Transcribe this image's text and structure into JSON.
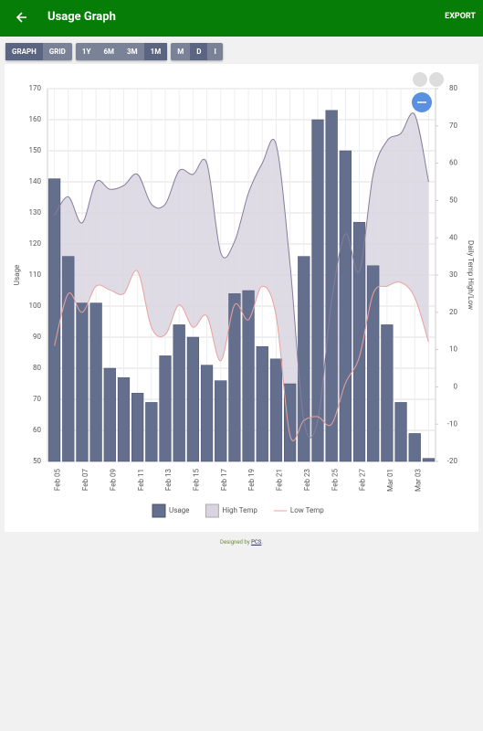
{
  "header": {
    "title": "Usage Graph",
    "action": "EXPORT"
  },
  "toolbar": {
    "groups": [
      {
        "buttons": [
          "GRAPH",
          "GRID"
        ],
        "active": 0
      },
      {
        "buttons": [
          "1Y",
          "6M",
          "3M",
          "1M"
        ],
        "active": 3
      },
      {
        "buttons": [
          "M",
          "D",
          "I"
        ],
        "active": 1
      }
    ]
  },
  "chart_data": {
    "type": "combo",
    "ylabel": "Usage",
    "y2label": "Daily Temp High/Low",
    "categories": [
      "Feb 05",
      null,
      "Feb 07",
      null,
      "Feb 09",
      null,
      "Feb 11",
      null,
      "Feb 13",
      null,
      "Feb 15",
      null,
      "Feb 17",
      null,
      "Feb 19",
      null,
      "Feb 21",
      null,
      "Feb 23",
      null,
      "Feb 25",
      null,
      "Feb 27",
      null,
      "Mar 01",
      null,
      "Mar 03",
      null
    ],
    "series": [
      {
        "name": "Usage",
        "type": "bar",
        "color": "#646f8e",
        "values": [
          141,
          116,
          101,
          101,
          80,
          77,
          72,
          69,
          84,
          94,
          90,
          81,
          76,
          104,
          105,
          87,
          83,
          75,
          116,
          160,
          163,
          150,
          127,
          113,
          94,
          69,
          59,
          51
        ]
      },
      {
        "name": "High Temp",
        "type": "area",
        "axis": "y2",
        "color": "#d8d5e0",
        "values": [
          46,
          51,
          44,
          55,
          53,
          54,
          57,
          49,
          49,
          58,
          57,
          60,
          36,
          39,
          52,
          60,
          65,
          33,
          -9,
          -9,
          23,
          41,
          31,
          57,
          66,
          68,
          73,
          55
        ]
      },
      {
        "name": "Low Temp",
        "type": "line",
        "axis": "y2",
        "color": "#eba29c",
        "values": [
          11,
          25,
          20,
          27,
          26,
          25,
          31,
          16,
          14,
          22,
          16,
          19,
          7,
          22,
          18,
          27,
          19,
          -13,
          -9,
          -8,
          -10,
          1,
          8,
          25,
          27,
          28,
          24,
          12
        ]
      }
    ],
    "ylim": [
      50,
      170
    ],
    "yticks": [
      50,
      60,
      70,
      80,
      90,
      100,
      110,
      120,
      130,
      140,
      150,
      160,
      170
    ],
    "y2lim": [
      -20,
      80
    ],
    "y2ticks": [
      -20,
      -10,
      0,
      10,
      20,
      30,
      40,
      50,
      60,
      70,
      80
    ],
    "grid": true,
    "legend": "bottom"
  },
  "footer": {
    "prefix": "Designed by",
    "link": "PCS",
    "suffix": "."
  }
}
